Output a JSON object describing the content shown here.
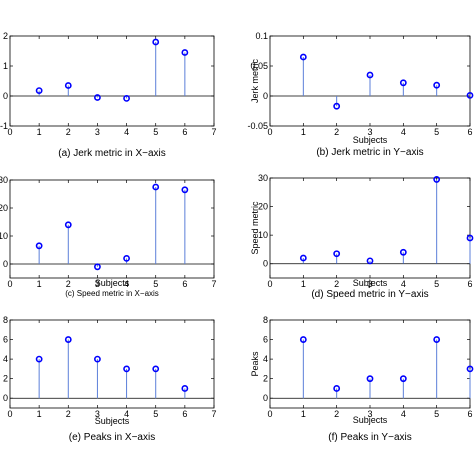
{
  "chart_data": [
    {
      "type": "stem",
      "caption": "(a) Jerk metric in X−axis",
      "xlabel": "",
      "ylabel": "",
      "x": [
        1,
        2,
        3,
        4,
        5,
        6
      ],
      "values": [
        0.18,
        0.35,
        -0.05,
        -0.08,
        1.8,
        1.45
      ],
      "xlim": [
        0,
        7
      ],
      "ylim": [
        -1,
        2
      ],
      "xticks": [
        "0",
        "1",
        "2",
        "3",
        "4",
        "5",
        "6",
        "7"
      ],
      "yticks": [
        "-1",
        "0",
        "1",
        "2"
      ],
      "marker_color": "#0000ff",
      "stem_color": "#5b7fd9"
    },
    {
      "type": "stem",
      "caption": "(b) Jerk metric in Y−axis",
      "xlabel": "Subjects",
      "ylabel": "Jerk metric",
      "x": [
        1,
        2,
        3,
        4,
        5,
        6
      ],
      "values": [
        0.065,
        -0.017,
        0.035,
        0.022,
        0.018,
        0.001
      ],
      "xlim": [
        0,
        6
      ],
      "ylim": [
        -0.05,
        0.1
      ],
      "xticks": [
        "0",
        "1",
        "2",
        "3",
        "4",
        "5",
        "6"
      ],
      "yticks": [
        "-0.05",
        "0",
        "0.05",
        "0.1"
      ],
      "marker_color": "#0000ff",
      "stem_color": "#5b7fd9"
    },
    {
      "type": "stem",
      "caption": "(c) Speed metric in X−axis",
      "xlabel": "Subjects",
      "ylabel": "",
      "x": [
        1,
        2,
        3,
        4,
        5,
        6
      ],
      "values": [
        6.5,
        14,
        -1,
        2,
        27.5,
        26.5
      ],
      "xlim": [
        0,
        7
      ],
      "ylim": [
        -5,
        30
      ],
      "xticks": [
        "0",
        "1",
        "2",
        "3",
        "4",
        "5",
        "6",
        "7"
      ],
      "yticks": [
        "0",
        "10",
        "20",
        "30"
      ],
      "marker_color": "#0000ff",
      "stem_color": "#5b7fd9"
    },
    {
      "type": "stem",
      "caption": "(d) Speed metric in Y−axis",
      "xlabel": "Subjects",
      "ylabel": "Speed metric",
      "x": [
        1,
        2,
        3,
        4,
        5,
        6
      ],
      "values": [
        2,
        3.5,
        1,
        4,
        29.5,
        9
      ],
      "xlim": [
        0,
        6
      ],
      "ylim": [
        -5,
        30
      ],
      "xticks": [
        "0",
        "1",
        "2",
        "3",
        "4",
        "5",
        "6"
      ],
      "yticks": [
        "0",
        "10",
        "20",
        "30"
      ],
      "marker_color": "#0000ff",
      "stem_color": "#5b7fd9"
    },
    {
      "type": "stem",
      "caption": "(e) Peaks in X−axis",
      "xlabel": "Subjects",
      "ylabel": "",
      "x": [
        1,
        2,
        3,
        4,
        5,
        6
      ],
      "values": [
        4,
        6,
        4,
        3,
        3,
        1
      ],
      "xlim": [
        0,
        7
      ],
      "ylim": [
        -1,
        8
      ],
      "xticks": [
        "0",
        "1",
        "2",
        "3",
        "4",
        "5",
        "6",
        "7"
      ],
      "yticks": [
        "0",
        "2",
        "4",
        "6",
        "8"
      ],
      "marker_color": "#0000ff",
      "stem_color": "#5b7fd9"
    },
    {
      "type": "stem",
      "caption": "(f) Peaks in Y−axis",
      "xlabel": "Subjects",
      "ylabel": "Peaks",
      "x": [
        1,
        2,
        3,
        4,
        5,
        6
      ],
      "values": [
        6,
        1,
        2,
        2,
        6,
        3
      ],
      "xlim": [
        0,
        6
      ],
      "ylim": [
        -1,
        8
      ],
      "xticks": [
        "0",
        "1",
        "2",
        "3",
        "4",
        "5",
        "6"
      ],
      "yticks": [
        "0",
        "2",
        "4",
        "6",
        "8"
      ],
      "marker_color": "#0000ff",
      "stem_color": "#5b7fd9"
    }
  ]
}
